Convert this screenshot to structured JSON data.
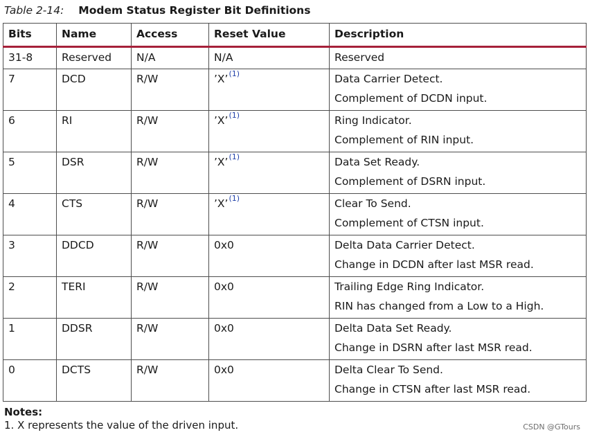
{
  "caption": {
    "number": "Table 2-14:",
    "title": "Modem Status Register Bit Definitions"
  },
  "table": {
    "headers": [
      "Bits",
      "Name",
      "Access",
      "Reset Value",
      "Description"
    ],
    "rows": [
      {
        "bits": "31-8",
        "name": "Reserved",
        "access": "N/A",
        "reset": "N/A",
        "reset_note": "",
        "desc1": "Reserved",
        "desc2": ""
      },
      {
        "bits": "7",
        "name": "DCD",
        "access": "R/W",
        "reset": "’X’",
        "reset_note": "(1)",
        "desc1": "Data Carrier Detect.",
        "desc2": "Complement of DCDN input."
      },
      {
        "bits": "6",
        "name": "RI",
        "access": "R/W",
        "reset": "’X’",
        "reset_note": "(1)",
        "desc1": "Ring Indicator.",
        "desc2": "Complement of RIN input."
      },
      {
        "bits": "5",
        "name": "DSR",
        "access": "R/W",
        "reset": "’X’",
        "reset_note": "(1)",
        "desc1": "Data Set Ready.",
        "desc2": "Complement of DSRN input."
      },
      {
        "bits": "4",
        "name": "CTS",
        "access": "R/W",
        "reset": "’X’",
        "reset_note": "(1)",
        "desc1": "Clear To Send.",
        "desc2": "Complement of CTSN input."
      },
      {
        "bits": "3",
        "name": "DDCD",
        "access": "R/W",
        "reset": "0x0",
        "reset_note": "",
        "desc1": "Delta Data Carrier Detect.",
        "desc2": "Change in DCDN after last MSR read."
      },
      {
        "bits": "2",
        "name": "TERI",
        "access": "R/W",
        "reset": "0x0",
        "reset_note": "",
        "desc1": "Trailing Edge Ring Indicator.",
        "desc2": "RIN has changed from a Low to a High."
      },
      {
        "bits": "1",
        "name": "DDSR",
        "access": "R/W",
        "reset": "0x0",
        "reset_note": "",
        "desc1": "Delta Data Set Ready.",
        "desc2": "Change in DSRN after last MSR read."
      },
      {
        "bits": "0",
        "name": "DCTS",
        "access": "R/W",
        "reset": "0x0",
        "reset_note": "",
        "desc1": "Delta Clear To Send.",
        "desc2": "Change in CTSN after last MSR read."
      }
    ]
  },
  "notes": {
    "heading": "Notes:",
    "items": [
      "1.  X represents the value of the driven input."
    ]
  },
  "watermark": "CSDN @GTours",
  "colors": {
    "header_rule": "#a6203a",
    "note_ref": "#1f3fa8"
  }
}
